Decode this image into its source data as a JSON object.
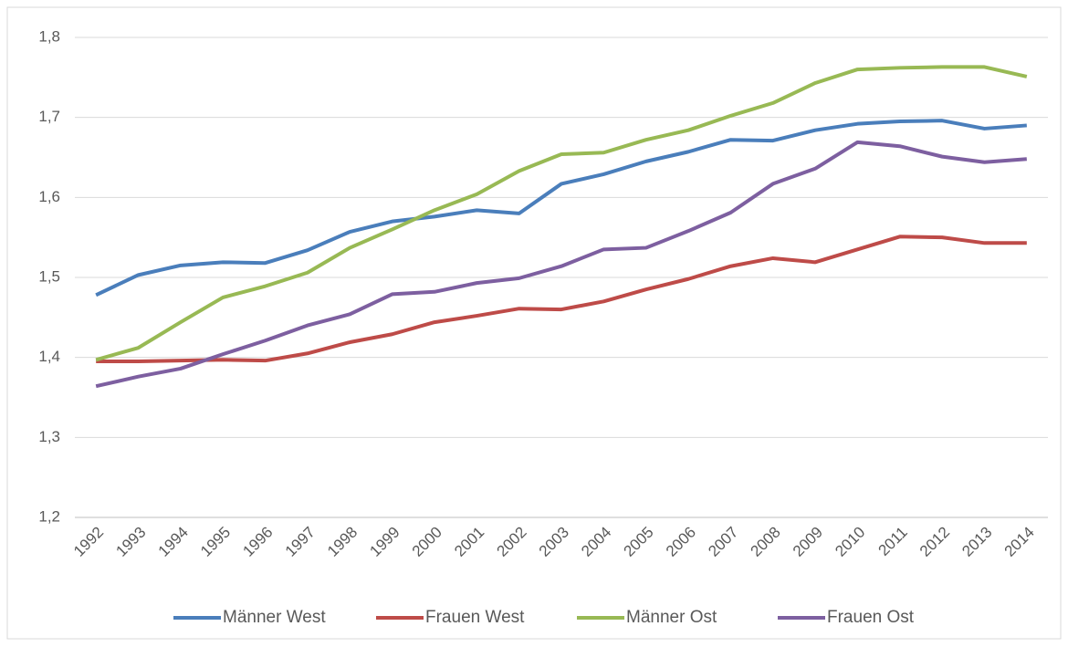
{
  "chart_data": {
    "type": "line",
    "x": [
      "1992",
      "1993",
      "1994",
      "1995",
      "1996",
      "1997",
      "1998",
      "1999",
      "2000",
      "2001",
      "2002",
      "2003",
      "2004",
      "2005",
      "2006",
      "2007",
      "2008",
      "2009",
      "2010",
      "2011",
      "2012",
      "2013",
      "2014"
    ],
    "series": [
      {
        "name": "Männer West",
        "color": "#4a7ebb",
        "values": [
          1.478,
          1.503,
          1.515,
          1.519,
          1.518,
          1.534,
          1.557,
          1.57,
          1.576,
          1.584,
          1.58,
          1.617,
          1.629,
          1.645,
          1.657,
          1.672,
          1.671,
          1.684,
          1.692,
          1.695,
          1.696,
          1.686,
          1.69
        ]
      },
      {
        "name": "Frauen West",
        "color": "#be4b48",
        "values": [
          1.395,
          1.395,
          1.396,
          1.397,
          1.396,
          1.405,
          1.419,
          1.429,
          1.444,
          1.452,
          1.461,
          1.46,
          1.47,
          1.485,
          1.498,
          1.514,
          1.524,
          1.519,
          1.535,
          1.551,
          1.55,
          1.543,
          1.543
        ]
      },
      {
        "name": "Männer Ost",
        "color": "#98b954",
        "values": [
          1.397,
          1.412,
          1.444,
          1.475,
          1.489,
          1.506,
          1.537,
          1.56,
          1.584,
          1.604,
          1.633,
          1.654,
          1.656,
          1.672,
          1.684,
          1.702,
          1.718,
          1.743,
          1.76,
          1.762,
          1.763,
          1.763,
          1.751
        ]
      },
      {
        "name": "Frauen Ost",
        "color": "#7d5fa0",
        "values": [
          1.364,
          1.376,
          1.386,
          1.404,
          1.421,
          1.44,
          1.454,
          1.479,
          1.482,
          1.493,
          1.499,
          1.514,
          1.535,
          1.537,
          1.558,
          1.581,
          1.617,
          1.636,
          1.669,
          1.664,
          1.651,
          1.644,
          1.648
        ]
      }
    ],
    "ylim": [
      1.2,
      1.8
    ],
    "yticks": [
      {
        "value": 1.2,
        "label": "1,2"
      },
      {
        "value": 1.3,
        "label": "1,3"
      },
      {
        "value": 1.4,
        "label": "1,4"
      },
      {
        "value": 1.5,
        "label": "1,5"
      },
      {
        "value": 1.6,
        "label": "1,6"
      },
      {
        "value": 1.7,
        "label": "1,7"
      },
      {
        "value": 1.8,
        "label": "1,8"
      }
    ],
    "grid": true,
    "legend": "bottom"
  }
}
